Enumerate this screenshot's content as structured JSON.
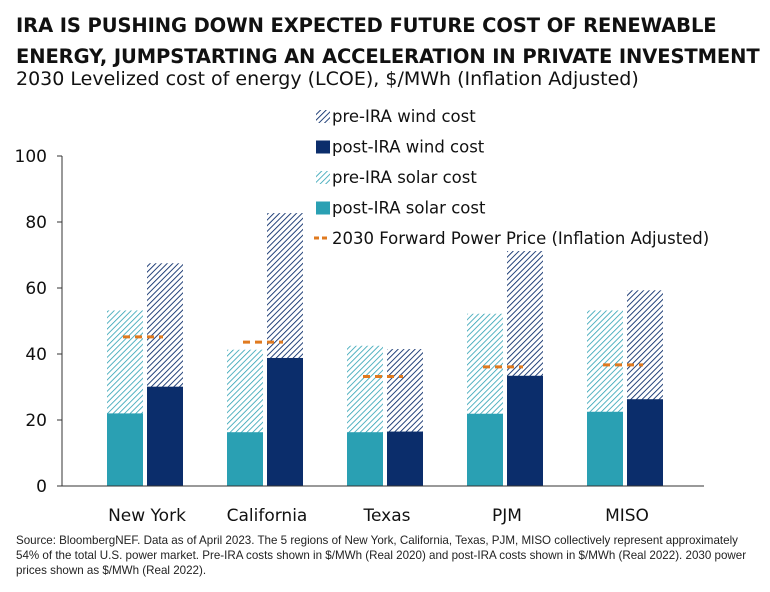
{
  "title": "IRA IS PUSHING DOWN EXPECTED FUTURE COST OF RENEWABLE ENERGY, JUMPSTARTING AN ACCELERATION IN PRIVATE INVESTMENT",
  "subtitle": "2030 Levelized cost of energy (LCOE), $/MWh (Inflation Adjusted)",
  "source": "Source: BloombergNEF. Data as of April 2023. The 5 regions of New York, California, Texas, PJM, MISO collectively represent approximately 54% of the total U.S. power market. Pre-IRA costs shown in $/MWh (Real 2020) and post-IRA costs shown in $/MWh (Real 2022). 2030 power prices shown as $/MWh (Real 2022).",
  "colors": {
    "solar_post": "#2aa0b3",
    "solar_pre": "#2aa0b3",
    "wind_post": "#0b2d6b",
    "wind_pre": "#0b2d6b",
    "forward_price": "#e07a1f",
    "axis": "#333333"
  },
  "chart_data": {
    "type": "bar",
    "categories": [
      "New York",
      "California",
      "Texas",
      "PJM",
      "MISO"
    ],
    "ylim": [
      0,
      100
    ],
    "yticks": [
      0,
      20,
      40,
      60,
      80,
      100
    ],
    "grid": false,
    "legend_position": "top-right",
    "series": [
      {
        "name": "pre-IRA wind cost",
        "style": "hatched",
        "values": [
          67.5,
          82.7,
          41.5,
          71.2,
          59.3
        ]
      },
      {
        "name": "post-IRA wind cost",
        "style": "solid",
        "values": [
          30.1,
          38.8,
          16.5,
          33.4,
          26.3
        ]
      },
      {
        "name": "pre-IRA solar cost",
        "style": "hatched",
        "values": [
          53.2,
          41.3,
          42.5,
          52.2,
          53.2
        ]
      },
      {
        "name": "post-IRA solar cost",
        "style": "solid",
        "values": [
          22.0,
          16.3,
          16.3,
          21.9,
          22.5
        ]
      },
      {
        "name": "2030 Forward Power Price (Inflation Adjusted)",
        "style": "dashed-line",
        "values": [
          45.2,
          43.6,
          33.2,
          36.1,
          36.7
        ]
      }
    ]
  }
}
